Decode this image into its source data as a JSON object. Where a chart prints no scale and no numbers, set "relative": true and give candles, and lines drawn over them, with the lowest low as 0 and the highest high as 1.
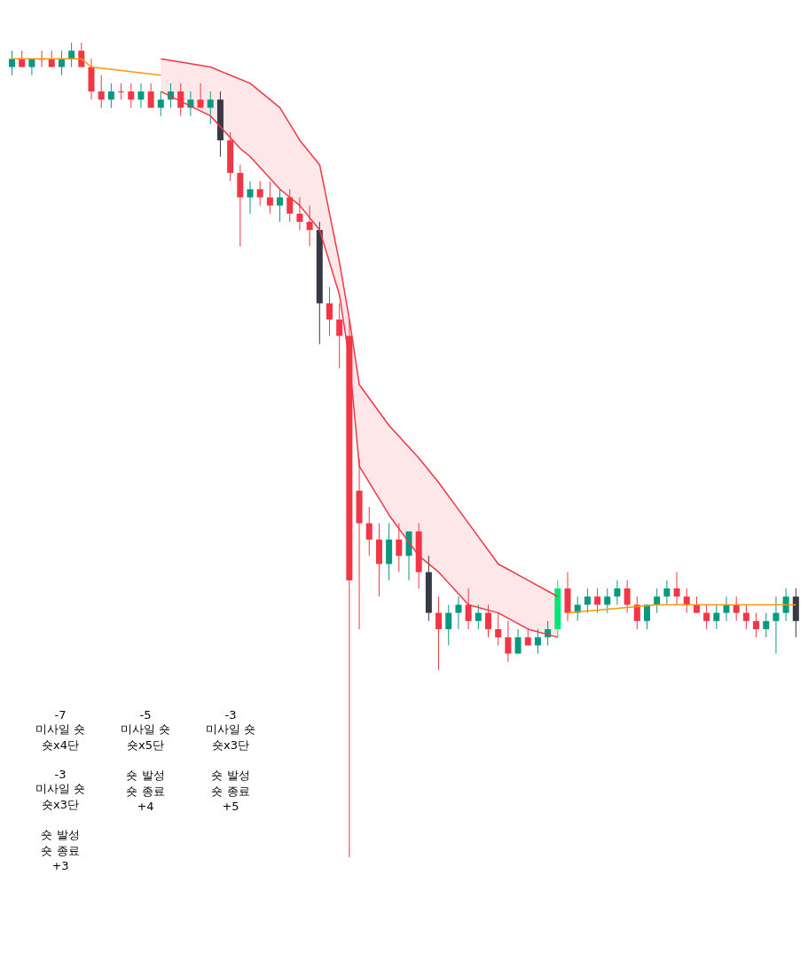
{
  "chart_data": {
    "type": "candlestick",
    "relative": true,
    "categories": [
      null,
      null,
      null,
      null,
      null,
      null,
      null,
      null,
      null,
      null,
      null,
      null,
      null,
      null,
      null,
      null,
      null,
      null,
      null,
      null,
      null,
      null,
      null,
      null,
      null,
      null,
      null,
      null,
      null,
      null,
      null,
      null,
      null,
      null,
      null,
      null,
      null,
      null,
      null,
      null,
      null,
      null,
      null,
      null,
      null,
      null,
      null,
      null,
      null,
      null,
      null,
      null,
      null,
      null,
      null,
      null,
      null,
      null,
      null,
      null,
      null,
      null,
      null,
      null,
      null,
      null,
      null,
      null,
      null,
      null,
      null,
      null,
      null,
      null,
      null,
      null,
      null,
      null,
      null,
      null
    ],
    "ohlc": [
      [
        0.97,
        0.99,
        0.96,
        0.98
      ],
      [
        0.98,
        0.99,
        0.97,
        0.97
      ],
      [
        0.97,
        0.98,
        0.96,
        0.98
      ],
      [
        0.98,
        0.99,
        0.97,
        0.98
      ],
      [
        0.98,
        0.99,
        0.97,
        0.97
      ],
      [
        0.97,
        0.99,
        0.96,
        0.98
      ],
      [
        0.98,
        1.0,
        0.97,
        0.99
      ],
      [
        0.99,
        1.0,
        0.97,
        0.97
      ],
      [
        0.97,
        0.98,
        0.93,
        0.94
      ],
      [
        0.94,
        0.96,
        0.92,
        0.93
      ],
      [
        0.93,
        0.95,
        0.92,
        0.94
      ],
      [
        0.94,
        0.95,
        0.93,
        0.94
      ],
      [
        0.94,
        0.95,
        0.92,
        0.93
      ],
      [
        0.93,
        0.95,
        0.92,
        0.94
      ],
      [
        0.94,
        0.95,
        0.92,
        0.92
      ],
      [
        0.92,
        0.94,
        0.91,
        0.93
      ],
      [
        0.93,
        0.95,
        0.92,
        0.94
      ],
      [
        0.94,
        0.95,
        0.91,
        0.92
      ],
      [
        0.92,
        0.94,
        0.91,
        0.93
      ],
      [
        0.93,
        0.95,
        0.92,
        0.92
      ],
      [
        0.92,
        0.94,
        0.9,
        0.93
      ],
      [
        0.93,
        0.94,
        0.86,
        0.88
      ],
      [
        0.88,
        0.89,
        0.83,
        0.84
      ],
      [
        0.84,
        0.85,
        0.75,
        0.81
      ],
      [
        0.81,
        0.83,
        0.79,
        0.82
      ],
      [
        0.82,
        0.83,
        0.8,
        0.81
      ],
      [
        0.81,
        0.83,
        0.79,
        0.8
      ],
      [
        0.8,
        0.82,
        0.78,
        0.81
      ],
      [
        0.81,
        0.82,
        0.78,
        0.79
      ],
      [
        0.79,
        0.81,
        0.77,
        0.78
      ],
      [
        0.78,
        0.8,
        0.75,
        0.77
      ],
      [
        0.77,
        0.78,
        0.63,
        0.68
      ],
      [
        0.68,
        0.7,
        0.64,
        0.66
      ],
      [
        0.66,
        0.68,
        0.6,
        0.64
      ],
      [
        0.64,
        0.66,
        0,
        0.34
      ],
      [
        0.45,
        0.49,
        0.28,
        0.41
      ],
      [
        0.41,
        0.43,
        0.37,
        0.39
      ],
      [
        0.39,
        0.41,
        0.32,
        0.36
      ],
      [
        0.36,
        0.41,
        0.34,
        0.39
      ],
      [
        0.39,
        0.41,
        0.35,
        0.37
      ],
      [
        0.37,
        0.4,
        0.34,
        0.4
      ],
      [
        0.4,
        0.41,
        0.33,
        0.35
      ],
      [
        0.35,
        0.37,
        0.29,
        0.3
      ],
      [
        0.3,
        0.32,
        0.23,
        0.28
      ],
      [
        0.28,
        0.31,
        0.26,
        0.3
      ],
      [
        0.3,
        0.32,
        0.28,
        0.31
      ],
      [
        0.31,
        0.33,
        0.28,
        0.29
      ],
      [
        0.29,
        0.31,
        0.28,
        0.3
      ],
      [
        0.3,
        0.31,
        0.27,
        0.28
      ],
      [
        0.28,
        0.3,
        0.26,
        0.27
      ],
      [
        0.27,
        0.29,
        0.24,
        0.25
      ],
      [
        0.25,
        0.28,
        0.25,
        0.27
      ],
      [
        0.27,
        0.28,
        0.26,
        0.26
      ],
      [
        0.26,
        0.28,
        0.25,
        0.27
      ],
      [
        0.27,
        0.29,
        0.26,
        0.28
      ],
      [
        0.28,
        0.34,
        0.27,
        0.33
      ],
      [
        0.33,
        0.35,
        0.29,
        0.3
      ],
      [
        0.3,
        0.32,
        0.29,
        0.31
      ],
      [
        0.31,
        0.33,
        0.3,
        0.32
      ],
      [
        0.32,
        0.33,
        0.3,
        0.31
      ],
      [
        0.31,
        0.33,
        0.3,
        0.32
      ],
      [
        0.32,
        0.34,
        0.31,
        0.33
      ],
      [
        0.33,
        0.34,
        0.3,
        0.31
      ],
      [
        0.31,
        0.32,
        0.28,
        0.29
      ],
      [
        0.29,
        0.31,
        0.28,
        0.31
      ],
      [
        0.31,
        0.33,
        0.3,
        0.32
      ],
      [
        0.32,
        0.34,
        0.31,
        0.33
      ],
      [
        0.33,
        0.35,
        0.31,
        0.32
      ],
      [
        0.32,
        0.33,
        0.3,
        0.31
      ],
      [
        0.31,
        0.32,
        0.3,
        0.3
      ],
      [
        0.3,
        0.31,
        0.28,
        0.29
      ],
      [
        0.29,
        0.31,
        0.28,
        0.3
      ],
      [
        0.3,
        0.32,
        0.29,
        0.31
      ],
      [
        0.31,
        0.32,
        0.29,
        0.3
      ],
      [
        0.3,
        0.31,
        0.28,
        0.29
      ],
      [
        0.29,
        0.3,
        0.27,
        0.28
      ],
      [
        0.28,
        0.3,
        0.27,
        0.29
      ],
      [
        0.29,
        0.32,
        0.25,
        0.3
      ],
      [
        0.3,
        0.33,
        0.29,
        0.32
      ],
      [
        0.32,
        0.33,
        0.27,
        0.29
      ]
    ],
    "colors": [
      "#089981",
      "#f23645",
      "#089981",
      "#f23645",
      "#f23645",
      "#089981",
      "#089981",
      "#f23645",
      "#f23645",
      "#f23645",
      "#089981",
      "#f23645",
      "#f23645",
      "#089981",
      "#f23645",
      "#089981",
      "#089981",
      "#f23645",
      "#089981",
      "#f23645",
      "#089981",
      "#363a45",
      "#f23645",
      "#f23645",
      "#089981",
      "#f23645",
      "#f23645",
      "#089981",
      "#f23645",
      "#f23645",
      "#f23645",
      "#363a45",
      "#f23645",
      "#f23645",
      "#f23645",
      "#f23645",
      "#f23645",
      "#f23645",
      "#089981",
      "#f23645",
      "#089981",
      "#f23645",
      "#363a45",
      "#f23645",
      "#089981",
      "#089981",
      "#f23645",
      "#089981",
      "#f23645",
      "#f23645",
      "#f23645",
      "#089981",
      "#f23645",
      "#089981",
      "#089981",
      "#00e676",
      "#f23645",
      "#089981",
      "#089981",
      "#f23645",
      "#089981",
      "#089981",
      "#f23645",
      "#f23645",
      "#089981",
      "#089981",
      "#089981",
      "#f23645",
      "#f23645",
      "#f23645",
      "#f23645",
      "#089981",
      "#089981",
      "#f23645",
      "#f23645",
      "#f23645",
      "#089981",
      "#089981",
      "#089981",
      "#363a45"
    ],
    "series": [
      {
        "type": "line",
        "color": "#f23645",
        "values": [
          null,
          null,
          null,
          null,
          null,
          null,
          null,
          null,
          null,
          null,
          null,
          null,
          null,
          null,
          null,
          0.94,
          null,
          null,
          null,
          null,
          0.91,
          null,
          null,
          0.87,
          0.86,
          null,
          null,
          0.82,
          null,
          0.8,
          null,
          0.77,
          null,
          0.69,
          0.61,
          0.48,
          null,
          null,
          0.42,
          null,
          null,
          0.37,
          null,
          0.35,
          null,
          null,
          0.31,
          null,
          null,
          0.3,
          null,
          null,
          0.28,
          null,
          null,
          0.27,
          null,
          null,
          null,
          null,
          null,
          null,
          null,
          null,
          null,
          null,
          null,
          null,
          null,
          null,
          null,
          null,
          null,
          null,
          null,
          null,
          null,
          null,
          null,
          null
        ]
      },
      {
        "type": "line",
        "color": "#f23645",
        "values": [
          null,
          null,
          null,
          null,
          null,
          null,
          null,
          null,
          null,
          null,
          null,
          null,
          null,
          null,
          null,
          0.98,
          null,
          null,
          null,
          null,
          0.97,
          null,
          null,
          null,
          0.95,
          null,
          null,
          0.92,
          null,
          0.88,
          null,
          0.85,
          null,
          0.73,
          0.66,
          0.58,
          null,
          null,
          0.53,
          null,
          null,
          0.49,
          null,
          0.46,
          null,
          null,
          0.41,
          null,
          null,
          0.36,
          null,
          null,
          0.34,
          null,
          null,
          0.32,
          null,
          null,
          null,
          null,
          null,
          null,
          null,
          null,
          null,
          null,
          null,
          null,
          null,
          null,
          null,
          null,
          null,
          null,
          null,
          null,
          null,
          null,
          null,
          null
        ]
      },
      {
        "type": "line",
        "color": "#ff9800",
        "values": [
          0.98,
          null,
          null,
          null,
          null,
          null,
          null,
          0.98,
          0.97,
          null,
          null,
          null,
          null,
          null,
          null,
          0.96,
          null,
          null,
          null,
          null,
          null,
          null,
          null,
          null,
          null,
          null,
          null,
          null,
          null,
          null,
          null,
          null,
          null,
          null,
          null,
          null,
          null,
          null,
          null,
          null,
          null,
          null,
          null,
          null,
          null,
          null,
          null,
          null,
          null,
          null,
          null,
          null,
          null,
          null,
          null,
          null,
          null,
          null,
          null,
          null,
          null,
          null,
          null,
          null,
          null,
          null,
          null,
          null,
          null,
          null,
          null,
          null,
          null,
          null,
          null,
          null,
          null,
          null,
          null,
          null
        ]
      },
      {
        "type": "line",
        "color": "#ff9800",
        "values": [
          null,
          null,
          null,
          null,
          null,
          null,
          null,
          null,
          null,
          null,
          null,
          null,
          null,
          null,
          null,
          null,
          null,
          null,
          null,
          null,
          null,
          null,
          null,
          null,
          null,
          null,
          null,
          null,
          null,
          null,
          null,
          null,
          null,
          null,
          null,
          null,
          null,
          null,
          null,
          null,
          null,
          null,
          null,
          null,
          null,
          null,
          null,
          null,
          null,
          null,
          null,
          null,
          null,
          null,
          null,
          null,
          0.3,
          null,
          null,
          null,
          null,
          null,
          null,
          null,
          null,
          0.31,
          null,
          null,
          null,
          null,
          null,
          null,
          null,
          null,
          null,
          null,
          null,
          null,
          null,
          0.31
        ]
      }
    ],
    "annotations": [
      "-7",
      "미사일 숏",
      "숏x4단",
      "-5",
      "미사일 숏",
      "숏x5단",
      "-3",
      "미사일 숏",
      "숏x3단",
      "-3",
      "미사일 숏",
      "숏x3단",
      "숏 발성",
      "숏 종료",
      "+4",
      "숏 발성",
      "숏 종료",
      "+5",
      "숏 발성",
      "숏 종료",
      "+3"
    ]
  }
}
